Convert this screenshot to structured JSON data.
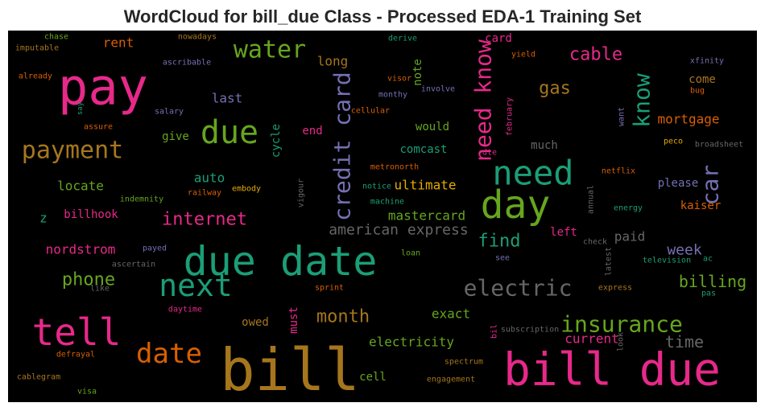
{
  "chart_data": {
    "type": "wordcloud",
    "title": "WordCloud for bill_due Class - Processed EDA-1 Training Set",
    "background": "#000000",
    "words": [
      {
        "text": "bill",
        "weight": 72,
        "color": "#a6761d"
      },
      {
        "text": "bill due",
        "weight": 56,
        "color": "#e7298a"
      },
      {
        "text": "due date",
        "weight": 50,
        "color": "#1b9e77"
      },
      {
        "text": "pay",
        "weight": 62,
        "color": "#e7298a"
      },
      {
        "text": "day",
        "weight": 48,
        "color": "#66a61e"
      },
      {
        "text": "need",
        "weight": 42,
        "color": "#1b9e77"
      },
      {
        "text": "tell",
        "weight": 46,
        "color": "#e7298a"
      },
      {
        "text": "due",
        "weight": 40,
        "color": "#66a61e"
      },
      {
        "text": "next",
        "weight": 38,
        "color": "#1b9e77"
      },
      {
        "text": "date",
        "weight": 34,
        "color": "#d95f02"
      },
      {
        "text": "payment",
        "weight": 30,
        "color": "#a6761d"
      },
      {
        "text": "water",
        "weight": 30,
        "color": "#66a61e"
      },
      {
        "text": "electric",
        "weight": 28,
        "color": "#666666"
      },
      {
        "text": "insurance",
        "weight": 28,
        "color": "#66a61e"
      },
      {
        "text": "credit card",
        "weight": 28,
        "color": "#7570b3"
      },
      {
        "text": "need know",
        "weight": 28,
        "color": "#e7298a"
      },
      {
        "text": "know",
        "weight": 28,
        "color": "#1b9e77"
      },
      {
        "text": "car",
        "weight": 28,
        "color": "#7570b3"
      },
      {
        "text": "internet",
        "weight": 22,
        "color": "#e7298a"
      },
      {
        "text": "american express",
        "weight": 18,
        "color": "#666666"
      },
      {
        "text": "phone",
        "weight": 22,
        "color": "#66a61e"
      },
      {
        "text": "month",
        "weight": 22,
        "color": "#a6761d"
      },
      {
        "text": "find",
        "weight": 22,
        "color": "#1b9e77"
      },
      {
        "text": "cable",
        "weight": 22,
        "color": "#e7298a"
      },
      {
        "text": "gas",
        "weight": 22,
        "color": "#a6761d"
      },
      {
        "text": "billing",
        "weight": 20,
        "color": "#66a61e"
      },
      {
        "text": "week",
        "weight": 18,
        "color": "#7570b3"
      },
      {
        "text": "time",
        "weight": 20,
        "color": "#666666"
      },
      {
        "text": "mortgage",
        "weight": 16,
        "color": "#d95f02"
      },
      {
        "text": "electricity",
        "weight": 16,
        "color": "#66a61e"
      },
      {
        "text": "exact",
        "weight": 16,
        "color": "#66a61e"
      },
      {
        "text": "current",
        "weight": 16,
        "color": "#e7298a"
      },
      {
        "text": "paid",
        "weight": 16,
        "color": "#666666"
      },
      {
        "text": "left",
        "weight": 14,
        "color": "#e7298a"
      },
      {
        "text": "mastercard",
        "weight": 16,
        "color": "#66a61e"
      },
      {
        "text": "ultimate",
        "weight": 16,
        "color": "#e6ab02"
      },
      {
        "text": "comcast",
        "weight": 14,
        "color": "#1b9e77"
      },
      {
        "text": "would",
        "weight": 14,
        "color": "#66a61e"
      },
      {
        "text": "much",
        "weight": 14,
        "color": "#666666"
      },
      {
        "text": "please",
        "weight": 14,
        "color": "#7570b3"
      },
      {
        "text": "kaiser",
        "weight": 14,
        "color": "#d95f02"
      },
      {
        "text": "come",
        "weight": 14,
        "color": "#a6761d"
      },
      {
        "text": "locate",
        "weight": 16,
        "color": "#66a61e"
      },
      {
        "text": "z",
        "weight": 16,
        "color": "#1b9e77"
      },
      {
        "text": "billhook",
        "weight": 14,
        "color": "#e7298a"
      },
      {
        "text": "nordstrom",
        "weight": 16,
        "color": "#e7298a"
      },
      {
        "text": "auto",
        "weight": 16,
        "color": "#1b9e77"
      },
      {
        "text": "give",
        "weight": 14,
        "color": "#66a61e"
      },
      {
        "text": "end",
        "weight": 14,
        "color": "#e7298a"
      },
      {
        "text": "last",
        "weight": 16,
        "color": "#7570b3"
      },
      {
        "text": "long",
        "weight": 16,
        "color": "#a6761d"
      },
      {
        "text": "rent",
        "weight": 16,
        "color": "#d95f02"
      },
      {
        "text": "owed",
        "weight": 14,
        "color": "#a6761d"
      },
      {
        "text": "cell",
        "weight": 14,
        "color": "#66a61e"
      },
      {
        "text": "cycle",
        "weight": 14,
        "color": "#1b9e77"
      },
      {
        "text": "must",
        "weight": 14,
        "color": "#e7298a"
      },
      {
        "text": "note",
        "weight": 14,
        "color": "#66a61e"
      },
      {
        "text": "card",
        "weight": 14,
        "color": "#e7298a"
      },
      {
        "text": "chase",
        "weight": 10,
        "color": "#66a61e"
      },
      {
        "text": "imputable",
        "weight": 10,
        "color": "#a6761d"
      },
      {
        "text": "nowadays",
        "weight": 10,
        "color": "#a6761d"
      },
      {
        "text": "derive",
        "weight": 10,
        "color": "#1b9e77"
      },
      {
        "text": "yield",
        "weight": 10,
        "color": "#d95f02"
      },
      {
        "text": "xfinity",
        "weight": 10,
        "color": "#7570b3"
      },
      {
        "text": "already",
        "weight": 10,
        "color": "#d95f02"
      },
      {
        "text": "ascribable",
        "weight": 10,
        "color": "#7570b3"
      },
      {
        "text": "visor",
        "weight": 10,
        "color": "#d95f02"
      },
      {
        "text": "involve",
        "weight": 10,
        "color": "#7570b3"
      },
      {
        "text": "monthy",
        "weight": 10,
        "color": "#7570b3"
      },
      {
        "text": "salary",
        "weight": 10,
        "color": "#7570b3"
      },
      {
        "text": "cellular",
        "weight": 10,
        "color": "#d95f02"
      },
      {
        "text": "bug",
        "weight": 10,
        "color": "#d95f02"
      },
      {
        "text": "assure",
        "weight": 10,
        "color": "#d95f02"
      },
      {
        "text": "say",
        "weight": 9,
        "color": "#1b9e77"
      },
      {
        "text": "february",
        "weight": 10,
        "color": "#e7298a"
      },
      {
        "text": "want",
        "weight": 10,
        "color": "#7570b3"
      },
      {
        "text": "dte",
        "weight": 10,
        "color": "#e7298a"
      },
      {
        "text": "peco",
        "weight": 10,
        "color": "#e6ab02"
      },
      {
        "text": "broadsheet",
        "weight": 10,
        "color": "#666666"
      },
      {
        "text": "metronorth",
        "weight": 10,
        "color": "#d95f02"
      },
      {
        "text": "netflix",
        "weight": 10,
        "color": "#d95f02"
      },
      {
        "text": "indemnity",
        "weight": 10,
        "color": "#66a61e"
      },
      {
        "text": "railway",
        "weight": 10,
        "color": "#d95f02"
      },
      {
        "text": "embody",
        "weight": 10,
        "color": "#e6ab02"
      },
      {
        "text": "notice",
        "weight": 10,
        "color": "#1b9e77"
      },
      {
        "text": "machine",
        "weight": 10,
        "color": "#1b9e77"
      },
      {
        "text": "vigour",
        "weight": 10,
        "color": "#666666"
      },
      {
        "text": "annual",
        "weight": 10,
        "color": "#666666"
      },
      {
        "text": "energy",
        "weight": 10,
        "color": "#1b9e77"
      },
      {
        "text": "payed",
        "weight": 10,
        "color": "#7570b3"
      },
      {
        "text": "ascertain",
        "weight": 10,
        "color": "#666666"
      },
      {
        "text": "loan",
        "weight": 10,
        "color": "#66a61e"
      },
      {
        "text": "check",
        "weight": 10,
        "color": "#666666"
      },
      {
        "text": "see",
        "weight": 10,
        "color": "#7570b3"
      },
      {
        "text": "latest",
        "weight": 10,
        "color": "#666666"
      },
      {
        "text": "television",
        "weight": 10,
        "color": "#1b9e77"
      },
      {
        "text": "ac",
        "weight": 10,
        "color": "#1b9e77"
      },
      {
        "text": "like",
        "weight": 10,
        "color": "#666666"
      },
      {
        "text": "sprint",
        "weight": 10,
        "color": "#d95f02"
      },
      {
        "text": "express",
        "weight": 10,
        "color": "#a6761d"
      },
      {
        "text": "pas",
        "weight": 10,
        "color": "#1b9e77"
      },
      {
        "text": "daytime",
        "weight": 10,
        "color": "#e7298a"
      },
      {
        "text": "subscription",
        "weight": 10,
        "color": "#666666"
      },
      {
        "text": "bil",
        "weight": 10,
        "color": "#e7298a"
      },
      {
        "text": "look",
        "weight": 10,
        "color": "#666666"
      },
      {
        "text": "defrayal",
        "weight": 10,
        "color": "#d95f02"
      },
      {
        "text": "spectrum",
        "weight": 10,
        "color": "#a6761d"
      },
      {
        "text": "cablegram",
        "weight": 10,
        "color": "#a6761d"
      },
      {
        "text": "engagement",
        "weight": 10,
        "color": "#a6761d"
      },
      {
        "text": "visa",
        "weight": 10,
        "color": "#66a61e"
      }
    ]
  }
}
